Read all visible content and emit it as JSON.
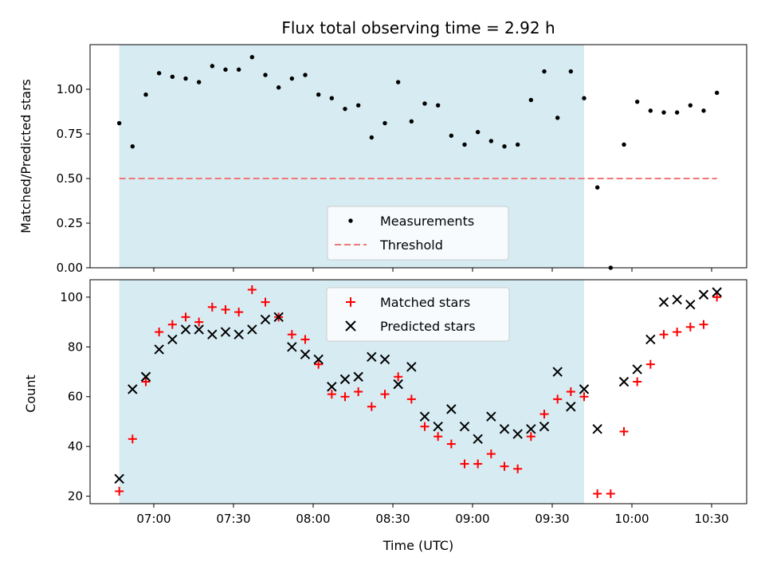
{
  "chart_data": [
    {
      "type": "scatter",
      "title": "Flux total observing time = 2.92 h",
      "xlabel": "",
      "ylabel": "Matched/Predicted stars",
      "ylim": [
        0,
        1.25
      ],
      "yticks": [
        "0.00",
        "0.25",
        "0.50",
        "0.75",
        "1.00"
      ],
      "legend_position": "lower-center",
      "shaded_region": {
        "start": "06:47",
        "end": "09:42",
        "color": "#add8e6"
      },
      "series": [
        {
          "name": "Measurements",
          "marker": "dot",
          "color": "#000000",
          "points": [
            [
              "06:47",
              0.81
            ],
            [
              "06:52",
              0.68
            ],
            [
              "06:57",
              0.97
            ],
            [
              "07:02",
              1.09
            ],
            [
              "07:07",
              1.07
            ],
            [
              "07:12",
              1.06
            ],
            [
              "07:17",
              1.04
            ],
            [
              "07:22",
              1.13
            ],
            [
              "07:27",
              1.11
            ],
            [
              "07:32",
              1.11
            ],
            [
              "07:37",
              1.18
            ],
            [
              "07:42",
              1.08
            ],
            [
              "07:47",
              1.01
            ],
            [
              "07:52",
              1.06
            ],
            [
              "07:57",
              1.08
            ],
            [
              "08:02",
              0.97
            ],
            [
              "08:07",
              0.95
            ],
            [
              "08:12",
              0.89
            ],
            [
              "08:17",
              0.91
            ],
            [
              "08:22",
              0.73
            ],
            [
              "08:27",
              0.81
            ],
            [
              "08:32",
              1.04
            ],
            [
              "08:37",
              0.82
            ],
            [
              "08:42",
              0.92
            ],
            [
              "08:47",
              0.91
            ],
            [
              "08:52",
              0.74
            ],
            [
              "08:57",
              0.69
            ],
            [
              "09:02",
              0.76
            ],
            [
              "09:07",
              0.71
            ],
            [
              "09:12",
              0.68
            ],
            [
              "09:17",
              0.69
            ],
            [
              "09:22",
              0.94
            ],
            [
              "09:27",
              1.1
            ],
            [
              "09:32",
              0.84
            ],
            [
              "09:37",
              1.1
            ],
            [
              "09:42",
              0.95
            ],
            [
              "09:47",
              0.45
            ],
            [
              "09:52",
              0.0
            ],
            [
              "09:57",
              0.69
            ],
            [
              "10:02",
              0.93
            ],
            [
              "10:07",
              0.88
            ],
            [
              "10:12",
              0.87
            ],
            [
              "10:17",
              0.87
            ],
            [
              "10:22",
              0.91
            ],
            [
              "10:27",
              0.88
            ],
            [
              "10:32",
              0.98
            ]
          ]
        },
        {
          "name": "Threshold",
          "marker": "dashed-line",
          "color": "#f07878",
          "points": [
            [
              "06:47",
              0.5
            ],
            [
              "10:32",
              0.5
            ]
          ]
        }
      ]
    },
    {
      "type": "scatter",
      "title": "",
      "xlabel": "Time (UTC)",
      "ylabel": "Count",
      "ylim": [
        17,
        107
      ],
      "yticks": [
        "20",
        "40",
        "60",
        "80",
        "100"
      ],
      "xticks": [
        "07:00",
        "07:30",
        "08:00",
        "08:30",
        "09:00",
        "09:30",
        "10:00",
        "10:30"
      ],
      "legend_position": "top-center",
      "shaded_region": {
        "start": "06:47",
        "end": "09:42",
        "color": "#add8e6"
      },
      "series": [
        {
          "name": "Matched stars",
          "marker": "plus",
          "color": "#ff0000",
          "points": [
            [
              "06:47",
              22
            ],
            [
              "06:52",
              43
            ],
            [
              "06:57",
              66
            ],
            [
              "07:02",
              86
            ],
            [
              "07:07",
              89
            ],
            [
              "07:12",
              92
            ],
            [
              "07:17",
              90
            ],
            [
              "07:22",
              96
            ],
            [
              "07:27",
              95
            ],
            [
              "07:32",
              94
            ],
            [
              "07:37",
              103
            ],
            [
              "07:42",
              98
            ],
            [
              "07:47",
              92
            ],
            [
              "07:52",
              85
            ],
            [
              "07:57",
              83
            ],
            [
              "08:02",
              73
            ],
            [
              "08:07",
              61
            ],
            [
              "08:12",
              60
            ],
            [
              "08:17",
              62
            ],
            [
              "08:22",
              56
            ],
            [
              "08:27",
              61
            ],
            [
              "08:32",
              68
            ],
            [
              "08:37",
              59
            ],
            [
              "08:42",
              48
            ],
            [
              "08:47",
              44
            ],
            [
              "08:52",
              41
            ],
            [
              "08:57",
              33
            ],
            [
              "09:02",
              33
            ],
            [
              "09:07",
              37
            ],
            [
              "09:12",
              32
            ],
            [
              "09:17",
              31
            ],
            [
              "09:22",
              44
            ],
            [
              "09:27",
              53
            ],
            [
              "09:32",
              59
            ],
            [
              "09:37",
              62
            ],
            [
              "09:42",
              60
            ],
            [
              "09:47",
              21
            ],
            [
              "09:52",
              21
            ],
            [
              "09:57",
              46
            ],
            [
              "10:02",
              66
            ],
            [
              "10:07",
              73
            ],
            [
              "10:12",
              85
            ],
            [
              "10:17",
              86
            ],
            [
              "10:22",
              88
            ],
            [
              "10:27",
              89
            ],
            [
              "10:32",
              100
            ]
          ]
        },
        {
          "name": "Predicted stars",
          "marker": "x",
          "color": "#000000",
          "points": [
            [
              "06:47",
              27
            ],
            [
              "06:52",
              63
            ],
            [
              "06:57",
              68
            ],
            [
              "07:02",
              79
            ],
            [
              "07:07",
              83
            ],
            [
              "07:12",
              87
            ],
            [
              "07:17",
              87
            ],
            [
              "07:22",
              85
            ],
            [
              "07:27",
              86
            ],
            [
              "07:32",
              85
            ],
            [
              "07:37",
              87
            ],
            [
              "07:42",
              91
            ],
            [
              "07:47",
              92
            ],
            [
              "07:52",
              80
            ],
            [
              "07:57",
              77
            ],
            [
              "08:02",
              75
            ],
            [
              "08:07",
              64
            ],
            [
              "08:12",
              67
            ],
            [
              "08:17",
              68
            ],
            [
              "08:22",
              76
            ],
            [
              "08:27",
              75
            ],
            [
              "08:32",
              65
            ],
            [
              "08:37",
              72
            ],
            [
              "08:42",
              52
            ],
            [
              "08:47",
              48
            ],
            [
              "08:52",
              55
            ],
            [
              "08:57",
              48
            ],
            [
              "09:02",
              43
            ],
            [
              "09:07",
              52
            ],
            [
              "09:12",
              47
            ],
            [
              "09:17",
              45
            ],
            [
              "09:22",
              47
            ],
            [
              "09:27",
              48
            ],
            [
              "09:32",
              70
            ],
            [
              "09:37",
              56
            ],
            [
              "09:42",
              63
            ],
            [
              "09:47",
              47
            ],
            [
              "09:57",
              66
            ],
            [
              "10:02",
              71
            ],
            [
              "10:07",
              83
            ],
            [
              "10:12",
              98
            ],
            [
              "10:17",
              99
            ],
            [
              "10:22",
              97
            ],
            [
              "10:27",
              101
            ],
            [
              "10:32",
              102
            ]
          ]
        }
      ]
    }
  ]
}
